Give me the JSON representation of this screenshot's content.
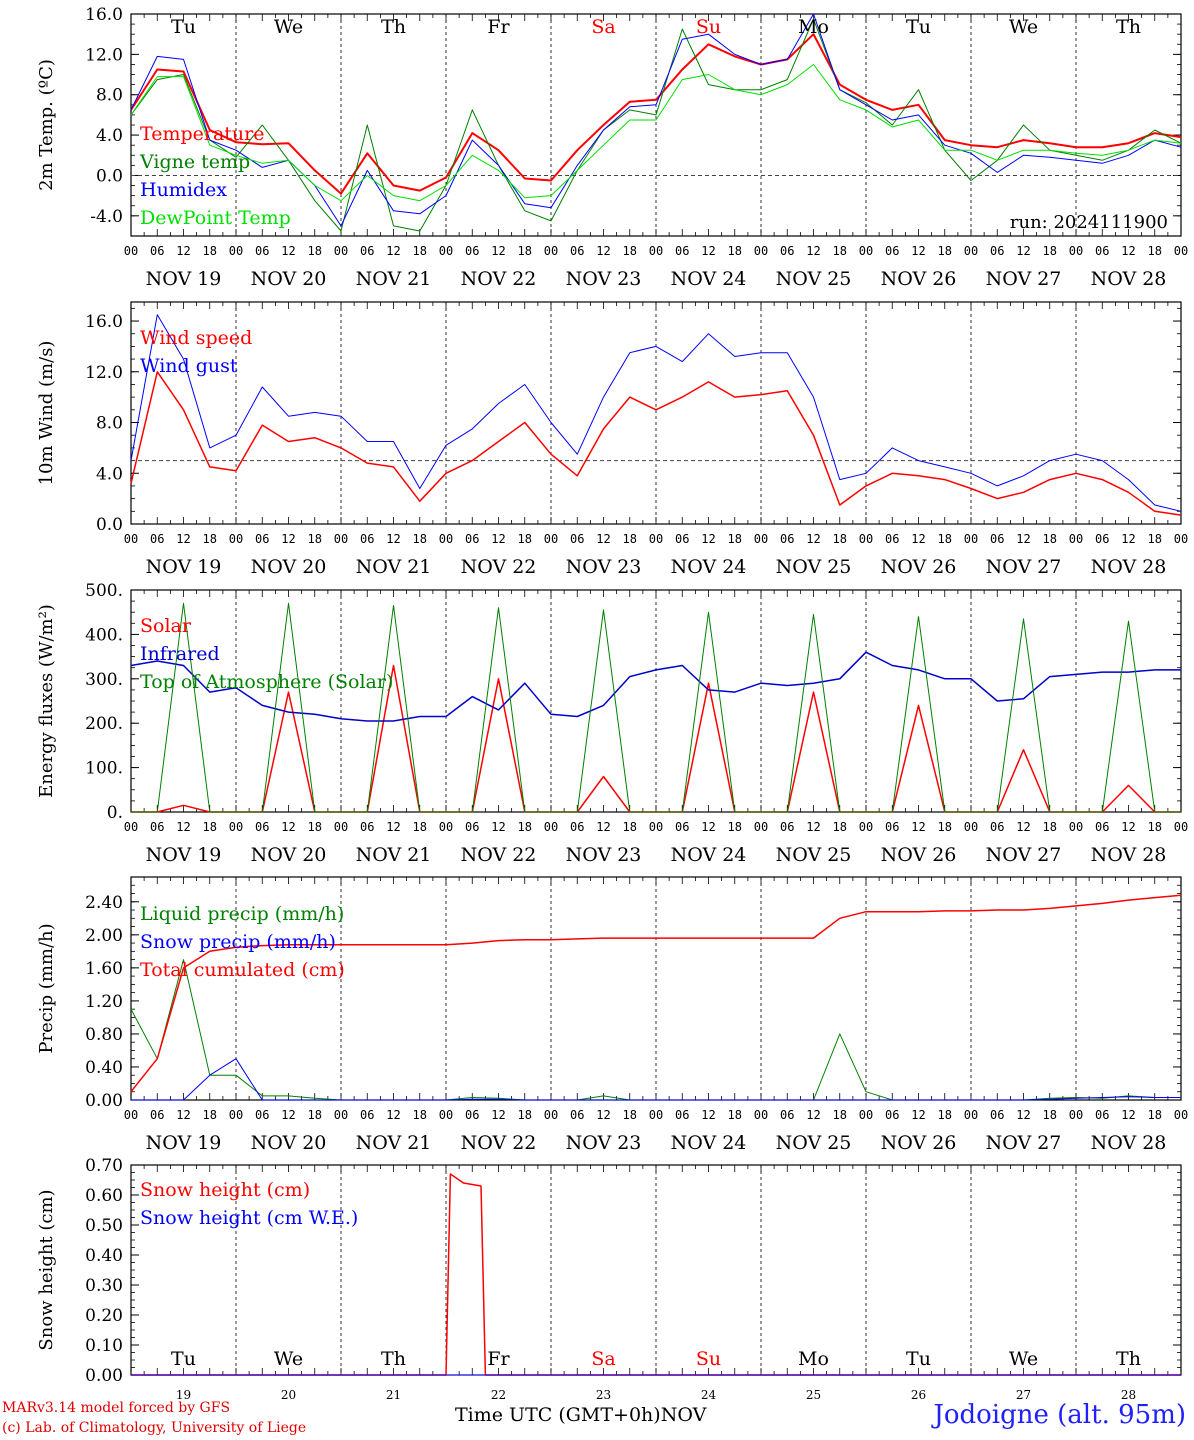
{
  "chart_data": [
    {
      "type": "line",
      "ylabel": "2m Temp. (ºC)",
      "ylim": [
        -6,
        16
      ],
      "yticks": [
        "16.0",
        "12.0",
        "8.0",
        "4.0",
        "0.0",
        "-4.0"
      ],
      "yticks_vals": [
        16,
        12,
        8,
        4,
        0,
        -4
      ],
      "hline": 0,
      "annotation": "run: 2024111900",
      "x_hours": [
        0,
        6,
        12,
        18,
        24,
        30,
        36,
        42,
        48,
        54,
        60,
        66,
        72,
        78,
        84,
        90,
        96,
        102,
        108,
        114,
        120,
        126,
        132,
        138,
        144,
        150,
        156,
        162,
        168,
        174,
        180,
        186,
        192,
        198,
        204,
        210,
        216,
        222,
        228,
        234,
        240
      ],
      "series": [
        {
          "name": "Temperature",
          "color": "#ff0000",
          "width": 2,
          "values": [
            6.5,
            10.5,
            10.3,
            4.5,
            3.3,
            3.1,
            3.2,
            0.5,
            -1.8,
            2.2,
            -1.0,
            -1.5,
            -0.2,
            4.2,
            2.5,
            -0.3,
            -0.5,
            2.5,
            5.0,
            7.3,
            7.5,
            10.5,
            13.0,
            11.8,
            11.0,
            11.5,
            14.0,
            9.0,
            7.5,
            6.5,
            7.0,
            3.5,
            3.0,
            2.8,
            3.5,
            3.2,
            2.8,
            2.8,
            3.2,
            4.2,
            3.8
          ]
        },
        {
          "name": "Vigne temp",
          "color": "#008000",
          "width": 1,
          "values": [
            6.0,
            9.5,
            10.0,
            3.5,
            1.8,
            5.0,
            1.5,
            -2.5,
            -5.5,
            5.0,
            -5.0,
            -5.5,
            -1.0,
            6.5,
            1.0,
            -3.5,
            -4.5,
            0.5,
            4.5,
            6.5,
            6.0,
            14.5,
            9.0,
            8.5,
            8.5,
            9.5,
            15.5,
            8.5,
            7.2,
            5.0,
            8.5,
            2.5,
            -0.5,
            1.5,
            5.0,
            2.5,
            2.0,
            1.5,
            2.5,
            4.5,
            3.2
          ]
        },
        {
          "name": "Humidex",
          "color": "#0000ff",
          "width": 1,
          "values": [
            6.5,
            11.8,
            11.5,
            3.5,
            2.5,
            0.8,
            1.5,
            -1.0,
            -5.0,
            0.5,
            -3.5,
            -3.8,
            -2.0,
            3.5,
            1.0,
            -2.8,
            -3.2,
            1.0,
            4.5,
            6.8,
            7.0,
            13.5,
            14.0,
            12.0,
            11.0,
            11.5,
            16.0,
            8.5,
            7.0,
            5.5,
            6.0,
            3.0,
            2.2,
            0.3,
            2.0,
            1.8,
            1.5,
            1.2,
            2.0,
            3.5,
            2.8
          ]
        },
        {
          "name": "DewPoint Temp",
          "color": "#00e000",
          "width": 1,
          "values": [
            6.0,
            9.8,
            9.8,
            3.0,
            2.0,
            1.2,
            1.5,
            -1.0,
            -2.5,
            0.0,
            -2.0,
            -2.5,
            -1.0,
            2.0,
            0.5,
            -2.2,
            -2.0,
            0.5,
            3.0,
            5.5,
            5.5,
            9.5,
            10.0,
            8.5,
            8.0,
            9.0,
            11.0,
            7.5,
            6.5,
            4.8,
            5.5,
            2.5,
            2.5,
            1.5,
            2.5,
            2.5,
            2.2,
            2.0,
            2.5,
            3.5,
            3.2
          ]
        }
      ]
    },
    {
      "type": "line",
      "ylabel": "10m Wind (m/s)",
      "ylim": [
        0,
        17.5
      ],
      "yticks": [
        "16.0",
        "12.0",
        "8.0",
        "4.0",
        "0.0"
      ],
      "yticks_vals": [
        16,
        12,
        8,
        4,
        0
      ],
      "hline": 5,
      "x_hours": [
        0,
        6,
        12,
        18,
        24,
        30,
        36,
        42,
        48,
        54,
        60,
        66,
        72,
        78,
        84,
        90,
        96,
        102,
        108,
        114,
        120,
        126,
        132,
        138,
        144,
        150,
        156,
        162,
        168,
        174,
        180,
        186,
        192,
        198,
        204,
        210,
        216,
        222,
        228,
        234,
        240
      ],
      "series": [
        {
          "name": "Wind speed",
          "color": "#ff0000",
          "width": 1.5,
          "values": [
            3.2,
            12.0,
            9.0,
            4.5,
            4.2,
            7.8,
            6.5,
            6.8,
            6.0,
            4.8,
            4.5,
            1.8,
            4.0,
            5.0,
            6.5,
            8.0,
            5.5,
            3.8,
            7.5,
            10.0,
            9.0,
            10.0,
            11.2,
            10.0,
            10.2,
            10.5,
            7.0,
            1.5,
            3.0,
            4.0,
            3.8,
            3.5,
            2.8,
            2.0,
            2.5,
            3.5,
            4.0,
            3.5,
            2.5,
            1.0,
            0.7
          ]
        },
        {
          "name": "Wind gust",
          "color": "#0000ff",
          "width": 1,
          "values": [
            5.0,
            16.5,
            13.0,
            6.0,
            7.0,
            10.8,
            8.5,
            8.8,
            8.5,
            6.5,
            6.5,
            2.8,
            6.2,
            7.5,
            9.5,
            11.0,
            8.0,
            5.5,
            10.0,
            13.5,
            14.0,
            12.8,
            15.0,
            13.2,
            13.5,
            13.5,
            10.0,
            3.5,
            4.0,
            6.0,
            5.0,
            4.5,
            4.0,
            3.0,
            3.8,
            5.0,
            5.5,
            5.0,
            3.5,
            1.5,
            1.0
          ]
        }
      ]
    },
    {
      "type": "line",
      "ylabel": "Energy fluxes (W/m²)",
      "ylim": [
        0,
        500
      ],
      "yticks": [
        "500.",
        "400.",
        "300.",
        "200.",
        "100.",
        "0."
      ],
      "yticks_vals": [
        500,
        400,
        300,
        200,
        100,
        0
      ],
      "x_hours": [
        0,
        6,
        12,
        18,
        24,
        30,
        36,
        42,
        48,
        54,
        60,
        66,
        72,
        78,
        84,
        90,
        96,
        102,
        108,
        114,
        120,
        126,
        132,
        138,
        144,
        150,
        156,
        162,
        168,
        174,
        180,
        186,
        192,
        198,
        204,
        210,
        216,
        222,
        228,
        234,
        240
      ],
      "series": [
        {
          "name": "Solar",
          "color": "#ff0000",
          "width": 1.5,
          "values": [
            0,
            0,
            15,
            0,
            0,
            0,
            270,
            0,
            0,
            0,
            330,
            0,
            0,
            0,
            300,
            0,
            0,
            0,
            80,
            0,
            0,
            0,
            290,
            0,
            0,
            0,
            270,
            0,
            0,
            0,
            240,
            0,
            0,
            0,
            140,
            0,
            0,
            0,
            60,
            0,
            0
          ]
        },
        {
          "name": "Infrared",
          "color": "#0000cc",
          "width": 1.5,
          "values": [
            330,
            340,
            330,
            270,
            280,
            240,
            225,
            220,
            210,
            205,
            205,
            215,
            215,
            260,
            230,
            290,
            220,
            215,
            240,
            305,
            320,
            330,
            275,
            270,
            290,
            285,
            290,
            300,
            360,
            330,
            320,
            300,
            300,
            250,
            255,
            305,
            310,
            315,
            315,
            320,
            320
          ]
        },
        {
          "name": "Top of Atmosphere (Solar)",
          "color": "#008000",
          "width": 1,
          "values": [
            0,
            0,
            470,
            0,
            0,
            0,
            470,
            0,
            0,
            0,
            465,
            0,
            0,
            0,
            460,
            0,
            0,
            0,
            455,
            0,
            0,
            0,
            450,
            0,
            0,
            0,
            445,
            0,
            0,
            0,
            440,
            0,
            0,
            0,
            435,
            0,
            0,
            0,
            430,
            0,
            0
          ]
        }
      ]
    },
    {
      "type": "line",
      "ylabel": "Precip (mm/h)",
      "ylim": [
        0,
        2.7
      ],
      "yticks": [
        "2.40",
        "2.00",
        "1.60",
        "1.20",
        "0.80",
        "0.40",
        "0.00"
      ],
      "yticks_vals": [
        2.4,
        2.0,
        1.6,
        1.2,
        0.8,
        0.4,
        0.0
      ],
      "x_hours": [
        0,
        6,
        12,
        18,
        24,
        30,
        36,
        42,
        48,
        54,
        60,
        66,
        72,
        78,
        84,
        90,
        96,
        102,
        108,
        114,
        120,
        126,
        132,
        138,
        144,
        150,
        156,
        162,
        168,
        174,
        180,
        186,
        192,
        198,
        204,
        210,
        216,
        222,
        228,
        234,
        240
      ],
      "series": [
        {
          "name": "Liquid precip (mm/h)",
          "color": "#008000",
          "width": 1,
          "values": [
            1.1,
            0.5,
            1.7,
            0.3,
            0.3,
            0.05,
            0.05,
            0.02,
            0.0,
            0.0,
            0.0,
            0.0,
            0.0,
            0.03,
            0.02,
            0.0,
            0.0,
            0.0,
            0.05,
            0.0,
            0.0,
            0.0,
            0.0,
            0.0,
            0.0,
            0.0,
            0.0,
            0.8,
            0.1,
            0.0,
            0.0,
            0.0,
            0.0,
            0.0,
            0.0,
            0.02,
            0.03,
            0.02,
            0.05,
            0.03,
            0.03
          ]
        },
        {
          "name": "Snow precip (mm/h)",
          "color": "#0000ff",
          "width": 1,
          "values": [
            0,
            0,
            0,
            0.3,
            0.5,
            0,
            0,
            0,
            0,
            0,
            0,
            0,
            0,
            0.01,
            0.01,
            0,
            0,
            0,
            0,
            0,
            0,
            0,
            0,
            0,
            0,
            0,
            0,
            0,
            0,
            0,
            0,
            0,
            0,
            0,
            0,
            0.01,
            0.02,
            0.03,
            0.04,
            0.03,
            0.03
          ]
        },
        {
          "name": "Total cumulated (cm)",
          "color": "#ff0000",
          "width": 1.5,
          "values": [
            0.1,
            0.5,
            1.6,
            1.8,
            1.85,
            1.87,
            1.88,
            1.88,
            1.88,
            1.88,
            1.88,
            1.88,
            1.88,
            1.9,
            1.93,
            1.94,
            1.94,
            1.95,
            1.96,
            1.96,
            1.96,
            1.96,
            1.96,
            1.96,
            1.96,
            1.96,
            1.96,
            2.2,
            2.28,
            2.28,
            2.28,
            2.29,
            2.29,
            2.3,
            2.3,
            2.32,
            2.35,
            2.38,
            2.42,
            2.45,
            2.48
          ]
        }
      ]
    },
    {
      "type": "line",
      "ylabel": "Snow height (cm)",
      "ylim": [
        0,
        0.7
      ],
      "yticks": [
        "0.70",
        "0.60",
        "0.50",
        "0.40",
        "0.30",
        "0.20",
        "0.10",
        "0.00"
      ],
      "yticks_vals": [
        0.7,
        0.6,
        0.5,
        0.4,
        0.3,
        0.2,
        0.1,
        0.0
      ],
      "x_hours": [
        0,
        72,
        73,
        76,
        80,
        81,
        240
      ],
      "series": [
        {
          "name": "Snow height (cm)",
          "color": "#ff0000",
          "width": 1.5,
          "values": [
            0,
            0,
            0.67,
            0.64,
            0.63,
            0,
            0
          ]
        },
        {
          "name": "Snow height (cm W.E.)",
          "color": "#0000ff",
          "width": 1,
          "values": [
            0,
            0,
            0,
            0,
            0,
            0,
            0
          ]
        }
      ]
    }
  ],
  "axis": {
    "hour_labels": [
      "00",
      "06",
      "12",
      "18"
    ],
    "final_label": "00",
    "dates": [
      "NOV 19",
      "NOV 20",
      "NOV 21",
      "NOV 22",
      "NOV 23",
      "NOV 24",
      "NOV 25",
      "NOV 26",
      "NOV 27",
      "NOV 28"
    ],
    "weekdays": [
      "Tu",
      "We",
      "Th",
      "Fr",
      "Sa",
      "Su",
      "Mo",
      "Tu",
      "We",
      "Th"
    ],
    "weekday_colors": [
      "#000000",
      "#000000",
      "#000000",
      "#000000",
      "#ff0000",
      "#ff0000",
      "#000000",
      "#000000",
      "#000000",
      "#000000"
    ],
    "day_numbers": [
      "19",
      "20",
      "21",
      "22",
      "23",
      "24",
      "25",
      "26",
      "27",
      "28"
    ],
    "month_label": "NOV",
    "xtitle": "Time UTC (GMT+0h)"
  },
  "footer": {
    "model_line": "MARv3.14 model forced by GFS",
    "credit_line": "(c) Lab. of Climatology, University of Liege",
    "station": "Jodoigne (alt. 95m)"
  }
}
